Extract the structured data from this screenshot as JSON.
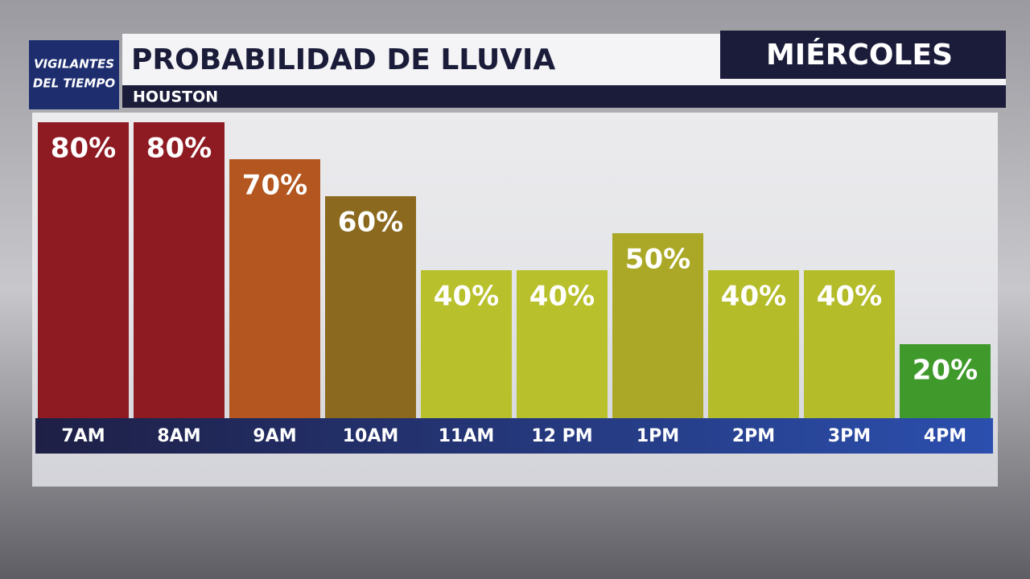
{
  "brand": {
    "line1": "VIGILANTES",
    "line2": "DEL TIEMPO"
  },
  "chart_data": {
    "type": "bar",
    "title": "PROBABILIDAD DE LLUVIA",
    "subtitle": "HOUSTON",
    "day": "MIÉRCOLES",
    "categories": [
      "7AM",
      "8AM",
      "9AM",
      "10AM",
      "11AM",
      "12 PM",
      "1PM",
      "2PM",
      "3PM",
      "4PM"
    ],
    "values": [
      80,
      80,
      70,
      60,
      40,
      40,
      50,
      40,
      40,
      20
    ],
    "value_labels": [
      "80%",
      "80%",
      "70%",
      "60%",
      "40%",
      "40%",
      "50%",
      "40%",
      "40%",
      "20%"
    ],
    "colors": [
      "#8e1b22",
      "#8e1b22",
      "#b3561f",
      "#8b6a1f",
      "#b8c02b",
      "#b8c02b",
      "#aaa826",
      "#b4bc2a",
      "#b4bc2a",
      "#3f9a2b"
    ]
  }
}
